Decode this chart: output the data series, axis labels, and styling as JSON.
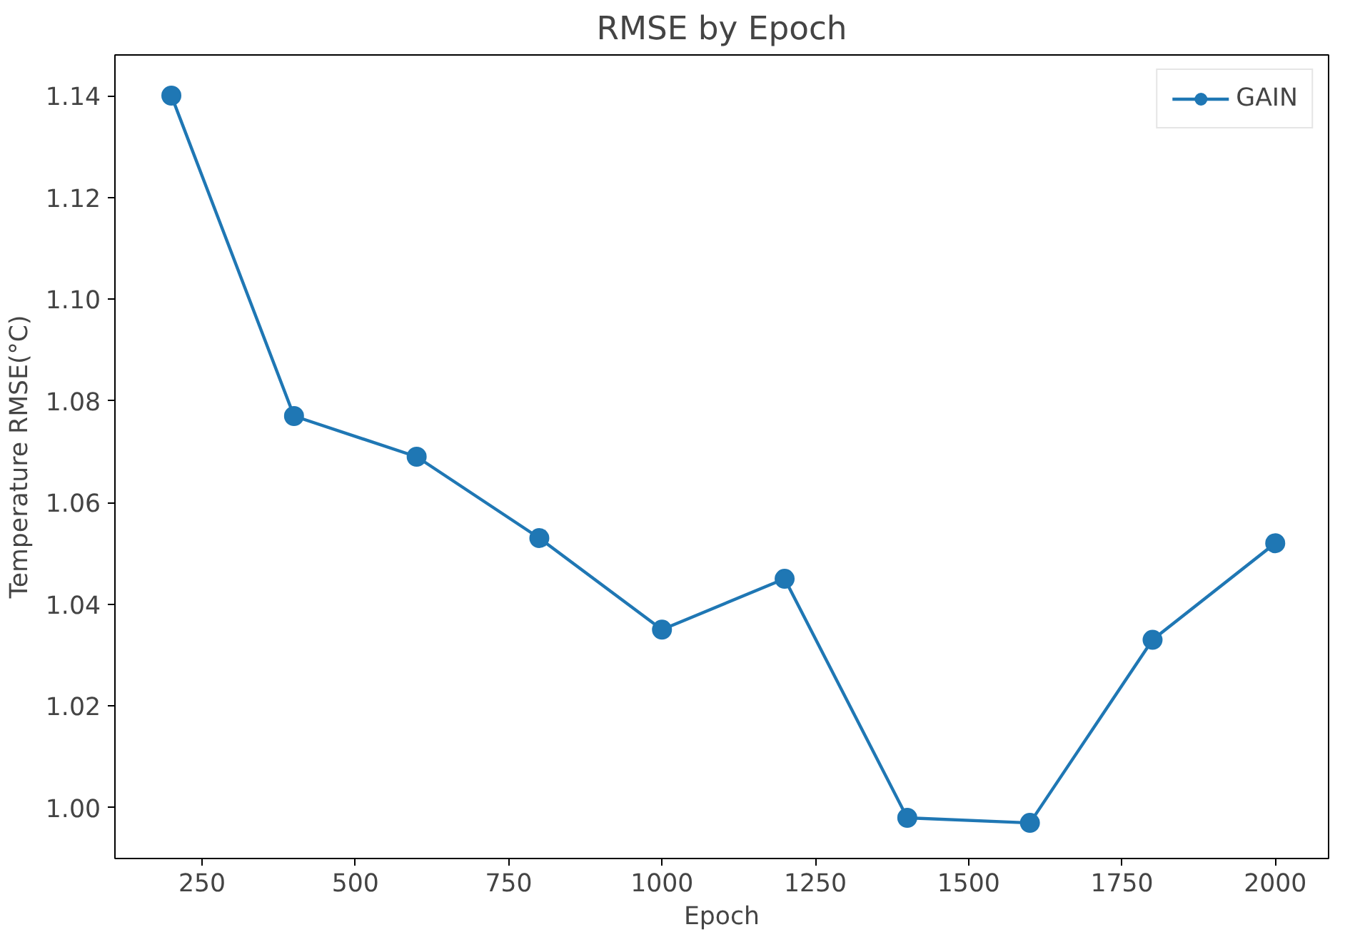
{
  "chart_data": {
    "type": "line",
    "title": "RMSE by Epoch",
    "xlabel": "Epoch",
    "ylabel": "Temperature RMSE(°C)",
    "x": [
      200,
      400,
      600,
      800,
      1000,
      1200,
      1400,
      1600,
      1800,
      2000
    ],
    "series": [
      {
        "name": "GAIN",
        "color": "#1f77b4",
        "values": [
          1.14,
          1.077,
          1.069,
          1.053,
          1.035,
          1.045,
          0.998,
          0.997,
          1.033,
          1.052
        ]
      }
    ],
    "xlim": [
      108,
      2087
    ],
    "ylim": [
      0.99,
      1.148
    ],
    "xticks": [
      250,
      500,
      750,
      1000,
      1250,
      1500,
      1750,
      2000
    ],
    "yticks": [
      {
        "value": 1.0,
        "label": "1.00"
      },
      {
        "value": 1.02,
        "label": "1.02"
      },
      {
        "value": 1.04,
        "label": "1.04"
      },
      {
        "value": 1.06,
        "label": "1.06"
      },
      {
        "value": 1.08,
        "label": "1.08"
      },
      {
        "value": 1.1,
        "label": "1.10"
      },
      {
        "value": 1.12,
        "label": "1.12"
      },
      {
        "value": 1.14,
        "label": "1.14"
      }
    ],
    "marker": "circle",
    "line_style": "solid",
    "legend": "top right"
  }
}
